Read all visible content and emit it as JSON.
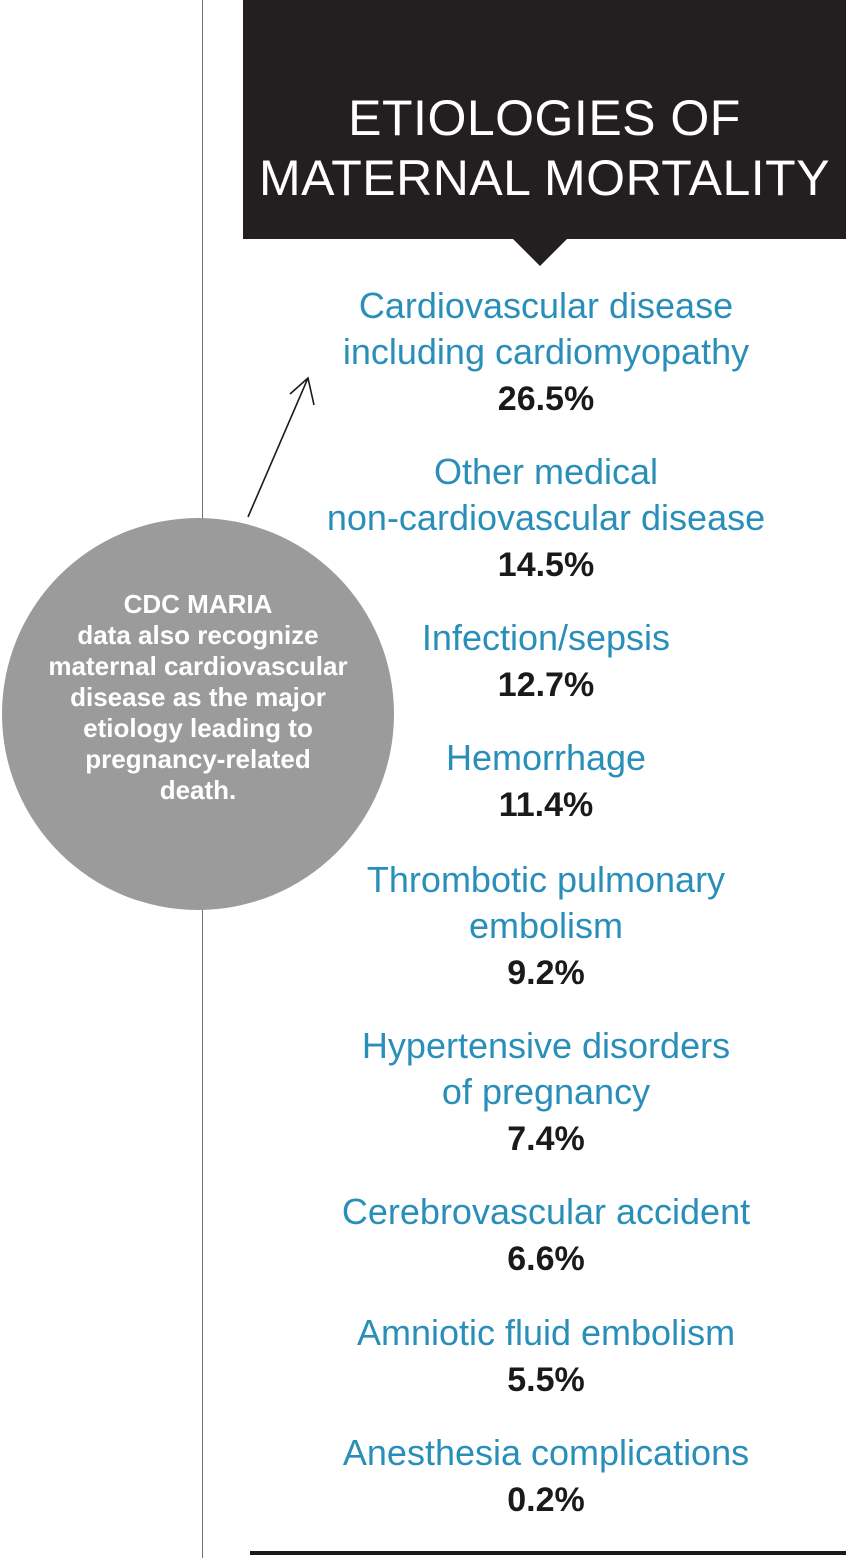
{
  "title": {
    "line1": "ETIOLOGIES OF",
    "line2": "MATERNAL MORTALITY"
  },
  "callout": {
    "lines": [
      "CDC MARIA",
      "data also recognize",
      "maternal cardiovascular",
      "disease as the major",
      "etiology leading to",
      "pregnancy-related",
      "death."
    ]
  },
  "items": [
    {
      "label": [
        "Cardiovascular disease",
        "including cardiomyopathy"
      ],
      "percent": "26.5%"
    },
    {
      "label": [
        "Other medical",
        "non-cardiovascular disease"
      ],
      "percent": "14.5%"
    },
    {
      "label": [
        "Infection/sepsis"
      ],
      "percent": "12.7%"
    },
    {
      "label": [
        "Hemorrhage"
      ],
      "percent": "11.4%"
    },
    {
      "label": [
        "Thrombotic pulmonary",
        "embolism"
      ],
      "percent": "9.2%"
    },
    {
      "label": [
        "Hypertensive disorders",
        "of pregnancy"
      ],
      "percent": "7.4%"
    },
    {
      "label": [
        "Cerebrovascular accident"
      ],
      "percent": "6.6%"
    },
    {
      "label": [
        "Amniotic fluid embolism"
      ],
      "percent": "5.5%"
    },
    {
      "label": [
        "Anesthesia complications"
      ],
      "percent": "0.2%"
    }
  ],
  "colors": {
    "title_bg": "#231f20",
    "label": "#2a8fb8",
    "percent": "#1a1a1a",
    "callout_bg": "#9b9b9b"
  }
}
